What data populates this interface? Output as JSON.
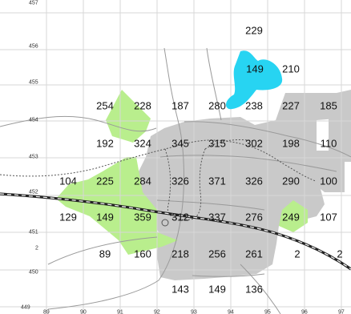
{
  "map": {
    "colors": {
      "urban": "#c9c9c9",
      "green": "#b9ee8d",
      "water": "#27d4f2",
      "grid": "#d7d7d7",
      "road": "#9a9a9a",
      "rail": "#222222"
    },
    "y_axis_labels": [
      "457",
      "456",
      "455",
      "454",
      "453",
      "452",
      "451",
      "2",
      "450",
      "449"
    ],
    "x_axis_labels": [
      "89",
      "90",
      "91",
      "92",
      "93",
      "94",
      "95",
      "96",
      "97"
    ],
    "cell_values": [
      {
        "id": "v-229",
        "text": "229"
      },
      {
        "id": "v-149-water",
        "text": "149"
      },
      {
        "id": "v-210",
        "text": "210"
      },
      {
        "id": "v-254",
        "text": "254"
      },
      {
        "id": "v-228",
        "text": "228"
      },
      {
        "id": "v-187",
        "text": "187"
      },
      {
        "id": "v-280",
        "text": "280"
      },
      {
        "id": "v-238",
        "text": "238"
      },
      {
        "id": "v-227",
        "text": "227"
      },
      {
        "id": "v-185",
        "text": "185"
      },
      {
        "id": "v-192",
        "text": "192"
      },
      {
        "id": "v-324",
        "text": "324"
      },
      {
        "id": "v-345",
        "text": "345"
      },
      {
        "id": "v-315",
        "text": "315"
      },
      {
        "id": "v-302",
        "text": "302"
      },
      {
        "id": "v-198",
        "text": "198"
      },
      {
        "id": "v-110",
        "text": "110"
      },
      {
        "id": "v-104",
        "text": "104"
      },
      {
        "id": "v-225",
        "text": "225"
      },
      {
        "id": "v-284",
        "text": "284"
      },
      {
        "id": "v-326a",
        "text": "326"
      },
      {
        "id": "v-371",
        "text": "371"
      },
      {
        "id": "v-326b",
        "text": "326"
      },
      {
        "id": "v-290",
        "text": "290"
      },
      {
        "id": "v-100",
        "text": "100"
      },
      {
        "id": "v-129",
        "text": "129"
      },
      {
        "id": "v-149b",
        "text": "149"
      },
      {
        "id": "v-359",
        "text": "359"
      },
      {
        "id": "v-312",
        "text": "312"
      },
      {
        "id": "v-337",
        "text": "337"
      },
      {
        "id": "v-276",
        "text": "276"
      },
      {
        "id": "v-249",
        "text": "249"
      },
      {
        "id": "v-107",
        "text": "107"
      },
      {
        "id": "v-89",
        "text": "89"
      },
      {
        "id": "v-160",
        "text": "160"
      },
      {
        "id": "v-218",
        "text": "218"
      },
      {
        "id": "v-256",
        "text": "256"
      },
      {
        "id": "v-261",
        "text": "261"
      },
      {
        "id": "v-2a",
        "text": "2"
      },
      {
        "id": "v-2b",
        "text": "2"
      },
      {
        "id": "v-143",
        "text": "143"
      },
      {
        "id": "v-149c",
        "text": "149"
      },
      {
        "id": "v-136",
        "text": "136"
      }
    ]
  }
}
